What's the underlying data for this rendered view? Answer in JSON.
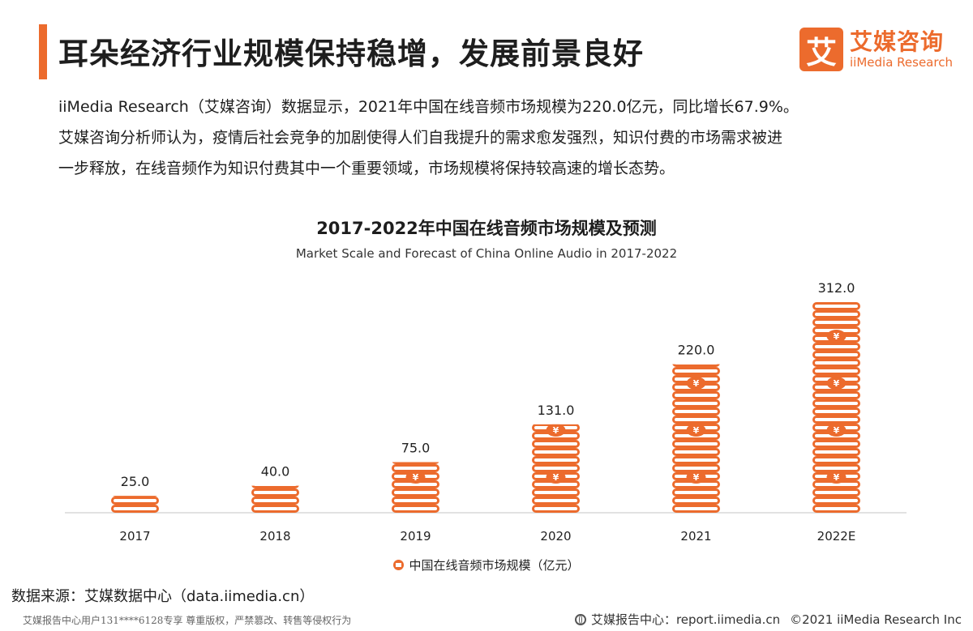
{
  "header": {
    "title": "耳朵经济行业规模保持稳增，发展前景良好",
    "logo_mark": "艾",
    "logo_cn": "艾媒咨询",
    "logo_en": "iiMedia Research"
  },
  "intro": {
    "line1": "iiMedia Research（艾媒咨询）数据显示，2021年中国在线音频市场规模为220.0亿元，同比增长67.9%。",
    "line2": "艾媒咨询分析师认为，疫情后社会竞争的加剧使得人们自我提升的需求愈发强烈，知识付费的市场需求被进",
    "line3": "一步释放，在线音频作为知识付费其中一个重要领域，市场规模将保持较高速的增长态势。"
  },
  "chart_data": {
    "type": "bar",
    "title": "2017-2022年中国在线音频市场规模及预测",
    "subtitle": "Market Scale and Forecast of China Online Audio in 2017-2022",
    "categories": [
      "2017",
      "2018",
      "2019",
      "2020",
      "2021",
      "2022E"
    ],
    "series": [
      {
        "name": "中国在线音频市场规模（亿元）",
        "values": [
          25.0,
          40.0,
          75.0,
          131.0,
          220.0,
          312.0
        ]
      }
    ],
    "value_labels": [
      "25.0",
      "40.0",
      "75.0",
      "131.0",
      "220.0",
      "312.0"
    ],
    "ylim": [
      0,
      312
    ],
    "grid": false,
    "legend_position": "bottom-center",
    "bar_style": "stacked-coins",
    "color": "#ec6b2d"
  },
  "footer": {
    "source": "数据来源：艾媒数据中心（data.iimedia.cn）",
    "notice": "艾媒报告中心用户131****6128专享 尊重版权，严禁篡改、转售等侵权行为",
    "report_site": "艾媒报告中心：report.iimedia.cn",
    "copyright": "©2021  iiMedia Research  Inc"
  }
}
